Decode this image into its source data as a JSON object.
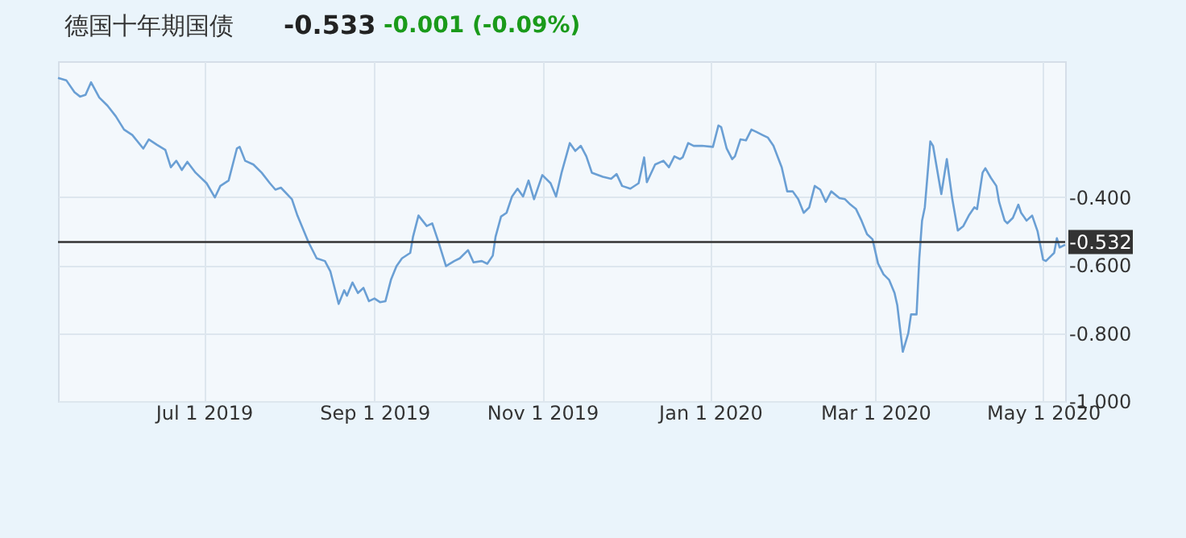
{
  "chart_data": {
    "type": "line",
    "title": "德国十年期国债",
    "annotations": [
      "-0.533",
      "-0.001 (-0.09%)"
    ],
    "x": [
      "2019-05-09",
      "2019-05-12",
      "2019-05-15",
      "2019-05-17",
      "2019-05-19",
      "2019-05-21",
      "2019-05-24",
      "2019-05-27",
      "2019-05-30",
      "2019-06-02",
      "2019-06-05",
      "2019-06-09",
      "2019-06-11",
      "2019-06-14",
      "2019-06-17",
      "2019-06-19",
      "2019-06-21",
      "2019-06-23",
      "2019-06-25",
      "2019-06-28",
      "2019-07-02",
      "2019-07-05",
      "2019-07-07",
      "2019-07-10",
      "2019-07-13",
      "2019-07-14",
      "2019-07-16",
      "2019-07-19",
      "2019-07-22",
      "2019-07-25",
      "2019-07-27",
      "2019-07-29",
      "2019-08-02",
      "2019-08-04",
      "2019-08-06",
      "2019-08-08",
      "2019-08-11",
      "2019-08-14",
      "2019-08-16",
      "2019-08-19",
      "2019-08-21",
      "2019-08-22",
      "2019-08-24",
      "2019-08-26",
      "2019-08-28",
      "2019-08-30",
      "2019-09-01",
      "2019-09-03",
      "2019-09-05",
      "2019-09-07",
      "2019-09-09",
      "2019-09-11",
      "2019-09-14",
      "2019-09-15",
      "2019-09-17",
      "2019-09-20",
      "2019-09-22",
      "2019-09-24",
      "2019-09-27",
      "2019-09-30",
      "2019-10-02",
      "2019-10-05",
      "2019-10-07",
      "2019-10-10",
      "2019-10-12",
      "2019-10-14",
      "2019-10-15",
      "2019-10-17",
      "2019-10-19",
      "2019-10-21",
      "2019-10-23",
      "2019-10-25",
      "2019-10-27",
      "2019-10-29",
      "2019-11-01",
      "2019-11-04",
      "2019-11-06",
      "2019-11-08",
      "2019-11-11",
      "2019-11-13",
      "2019-11-15",
      "2019-11-17",
      "2019-11-19",
      "2019-11-23",
      "2019-11-26",
      "2019-11-28",
      "2019-11-30",
      "2019-12-03",
      "2019-12-06",
      "2019-12-08",
      "2019-12-09",
      "2019-12-12",
      "2019-12-15",
      "2019-12-17",
      "2019-12-19",
      "2019-12-21",
      "2019-12-22",
      "2019-12-24",
      "2019-12-26",
      "2019-12-29",
      "2020-01-02",
      "2020-01-04",
      "2020-01-05",
      "2020-01-07",
      "2020-01-09",
      "2020-01-10",
      "2020-01-12",
      "2020-01-14",
      "2020-01-16",
      "2020-01-18",
      "2020-01-20",
      "2020-01-22",
      "2020-01-24",
      "2020-01-27",
      "2020-01-29",
      "2020-01-31",
      "2020-02-02",
      "2020-02-04",
      "2020-02-06",
      "2020-02-08",
      "2020-02-10",
      "2020-02-12",
      "2020-02-14",
      "2020-02-17",
      "2020-02-19",
      "2020-02-21",
      "2020-02-23",
      "2020-02-25",
      "2020-02-27",
      "2020-02-29",
      "2020-03-02",
      "2020-03-04",
      "2020-03-06",
      "2020-03-08",
      "2020-03-09",
      "2020-03-11",
      "2020-03-13",
      "2020-03-14",
      "2020-03-16",
      "2020-03-17",
      "2020-03-18",
      "2020-03-19",
      "2020-03-21",
      "2020-03-22",
      "2020-03-25",
      "2020-03-27",
      "2020-03-29",
      "2020-03-31",
      "2020-04-02",
      "2020-04-04",
      "2020-04-06",
      "2020-04-07",
      "2020-04-09",
      "2020-04-10",
      "2020-04-12",
      "2020-04-14",
      "2020-04-15",
      "2020-04-17",
      "2020-04-18",
      "2020-04-20",
      "2020-04-22",
      "2020-04-23",
      "2020-04-25",
      "2020-04-27",
      "2020-04-29",
      "2020-05-01",
      "2020-05-02",
      "2020-05-04",
      "2020-05-05",
      "2020-05-06",
      "2020-05-07",
      "2020-05-09"
    ],
    "series": [
      {
        "color": "#6a9fd4",
        "values": [
          -0.049,
          -0.056,
          -0.091,
          -0.104,
          -0.099,
          -0.062,
          -0.107,
          -0.131,
          -0.162,
          -0.201,
          -0.217,
          -0.257,
          -0.23,
          -0.246,
          -0.261,
          -0.312,
          -0.293,
          -0.32,
          -0.296,
          -0.328,
          -0.359,
          -0.401,
          -0.367,
          -0.351,
          -0.257,
          -0.252,
          -0.293,
          -0.304,
          -0.328,
          -0.359,
          -0.378,
          -0.372,
          -0.406,
          -0.454,
          -0.493,
          -0.532,
          -0.58,
          -0.588,
          -0.619,
          -0.714,
          -0.674,
          -0.69,
          -0.651,
          -0.682,
          -0.667,
          -0.706,
          -0.698,
          -0.709,
          -0.706,
          -0.643,
          -0.603,
          -0.58,
          -0.564,
          -0.517,
          -0.454,
          -0.485,
          -0.477,
          -0.525,
          -0.603,
          -0.588,
          -0.58,
          -0.556,
          -0.592,
          -0.588,
          -0.596,
          -0.572,
          -0.517,
          -0.457,
          -0.446,
          -0.398,
          -0.375,
          -0.398,
          -0.351,
          -0.406,
          -0.335,
          -0.359,
          -0.398,
          -0.328,
          -0.241,
          -0.264,
          -0.249,
          -0.28,
          -0.328,
          -0.34,
          -0.346,
          -0.332,
          -0.367,
          -0.375,
          -0.359,
          -0.283,
          -0.356,
          -0.304,
          -0.293,
          -0.312,
          -0.28,
          -0.288,
          -0.283,
          -0.241,
          -0.249,
          -0.249,
          -0.252,
          -0.189,
          -0.194,
          -0.257,
          -0.288,
          -0.28,
          -0.23,
          -0.233,
          -0.201,
          -0.209,
          -0.217,
          -0.225,
          -0.249,
          -0.312,
          -0.383,
          -0.383,
          -0.406,
          -0.446,
          -0.43,
          -0.367,
          -0.378,
          -0.414,
          -0.383,
          -0.403,
          -0.406,
          -0.422,
          -0.435,
          -0.469,
          -0.509,
          -0.524,
          -0.595,
          -0.627,
          -0.643,
          -0.682,
          -0.718,
          -0.855,
          -0.8,
          -0.745,
          -0.745,
          -0.58,
          -0.469,
          -0.43,
          -0.236,
          -0.249,
          -0.391,
          -0.288,
          -0.406,
          -0.498,
          -0.485,
          -0.454,
          -0.43,
          -0.435,
          -0.328,
          -0.315,
          -0.343,
          -0.367,
          -0.414,
          -0.469,
          -0.477,
          -0.461,
          -0.422,
          -0.446,
          -0.469,
          -0.454,
          -0.501,
          -0.584,
          -0.588,
          -0.572,
          -0.564,
          -0.521,
          -0.548,
          -0.54
        ]
      }
    ],
    "xlim": [
      "2019-05-09",
      "2020-05-09"
    ],
    "xticks": [
      {
        "value": "2019-07-01",
        "label": "Jul 1 2019"
      },
      {
        "value": "2019-09-01",
        "label": "Sep 1 2019"
      },
      {
        "value": "2019-11-01",
        "label": "Nov 1 2019"
      },
      {
        "value": "2020-01-01",
        "label": "Jan 1 2020"
      },
      {
        "value": "2020-03-01",
        "label": "Mar 1 2020"
      },
      {
        "value": "2020-05-01",
        "label": "May 1 2020"
      }
    ],
    "ylim": [
      -1.0,
      0.0
    ],
    "yticks": [
      {
        "value": -0.4,
        "label": "-0.400"
      },
      {
        "value": -0.6,
        "label": "-0.600"
      },
      {
        "value": -0.8,
        "label": "-0.800"
      },
      {
        "value": -1.0,
        "label": "-1.000"
      }
    ],
    "ref_lines": [
      {
        "axis": "y",
        "value": -0.532,
        "label": "-0.532",
        "color": "#333333"
      }
    ],
    "grid": true,
    "marker": "none",
    "line_style": "solid"
  }
}
